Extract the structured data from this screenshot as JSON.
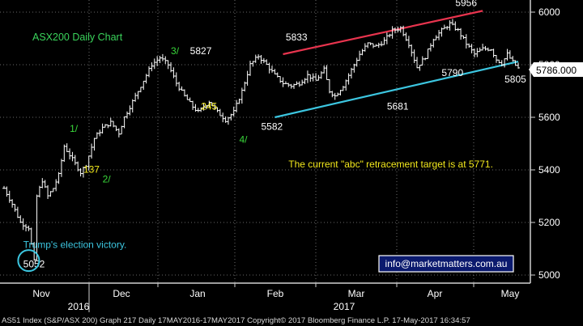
{
  "chart_data": {
    "type": "line",
    "title": "ASX200 Daily Chart",
    "ylim": [
      4980,
      6080
    ],
    "yticks": [
      5000,
      5200,
      5400,
      5600,
      5800,
      6000
    ],
    "last_price": "5786.000",
    "month_labels": [
      "Nov",
      "Dec",
      "Jan",
      "Feb",
      "Mar",
      "Apr",
      "May"
    ],
    "year_labels": [
      "2016",
      "2017"
    ],
    "x": [
      0,
      3,
      6,
      9,
      11,
      12,
      14,
      16,
      18,
      20,
      22,
      25,
      28,
      30,
      33,
      36,
      39,
      42,
      44,
      46,
      48,
      51,
      54,
      57,
      60,
      63,
      66,
      69,
      71,
      73,
      75,
      78,
      81,
      84,
      87,
      90,
      93,
      96,
      99,
      102,
      105,
      108,
      111,
      114,
      117,
      119,
      121,
      124,
      127,
      130,
      133,
      136,
      139,
      142,
      145,
      148,
      151,
      154,
      157,
      160,
      163,
      166,
      169,
      172,
      175,
      178,
      180,
      182,
      184,
      186,
      188
    ],
    "values": [
      5330,
      5270,
      5200,
      5180,
      5052,
      5300,
      5360,
      5300,
      5330,
      5380,
      5490,
      5440,
      5390,
      5420,
      5520,
      5560,
      5580,
      5540,
      5600,
      5640,
      5680,
      5740,
      5800,
      5827,
      5800,
      5730,
      5680,
      5640,
      5620,
      5640,
      5660,
      5620,
      5590,
      5620,
      5700,
      5800,
      5833,
      5800,
      5760,
      5730,
      5720,
      5730,
      5760,
      5740,
      5781,
      5700,
      5681,
      5720,
      5780,
      5840,
      5880,
      5870,
      5890,
      5930,
      5940,
      5880,
      5790,
      5830,
      5900,
      5930,
      5956,
      5930,
      5880,
      5840,
      5860,
      5860,
      5820,
      5805,
      5840,
      5810,
      5786
    ],
    "trendlines": [
      {
        "color": "#e8344e",
        "x1": 102,
        "y1": 5840,
        "x2": 175,
        "y2": 6005
      },
      {
        "color": "#3cc6e0",
        "x1": 99,
        "y1": 5600,
        "x2": 188,
        "y2": 5812
      }
    ],
    "annotations": [
      {
        "text": "1/",
        "x": 24,
        "y": 5545,
        "color": "#39d83a"
      },
      {
        "text": "137",
        "x": 29,
        "y": 5390,
        "color": "#f2e81c"
      },
      {
        "text": "2/",
        "x": 36,
        "y": 5353,
        "color": "#39d83a"
      },
      {
        "text": "3/",
        "x": 61,
        "y": 5840,
        "color": "#39d83a"
      },
      {
        "text": "5827",
        "x": 68,
        "y": 5840,
        "color": "#ffffff"
      },
      {
        "text": "245",
        "x": 72,
        "y": 5630,
        "color": "#f2e81c"
      },
      {
        "text": "4/",
        "x": 86,
        "y": 5503,
        "color": "#39d83a"
      },
      {
        "text": "5582",
        "x": 94,
        "y": 5553,
        "color": "#ffffff"
      },
      {
        "text": "5833",
        "x": 103,
        "y": 5893,
        "color": "#ffffff"
      },
      {
        "text": "5681",
        "x": 140,
        "y": 5630,
        "color": "#ffffff"
      },
      {
        "text": "5790",
        "x": 160,
        "y": 5757,
        "color": "#ffffff"
      },
      {
        "text": "5956",
        "x": 165,
        "y": 6023,
        "color": "#ffffff"
      },
      {
        "text": "5805",
        "x": 183,
        "y": 5732,
        "color": "#ffffff"
      },
      {
        "text": "The current \"abc\" retracement target is at 5771.",
        "x": 104,
        "y": 5410,
        "color": "#f2e81c"
      },
      {
        "text": "Trump's election victory.",
        "x": 7,
        "y": 5103,
        "color": "#3cc6e0"
      },
      {
        "text": "5052",
        "x": 7,
        "y": 5030,
        "color": "#ffffff"
      }
    ],
    "marker": {
      "x": 9,
      "y": 5055,
      "color": "#3cc6e0"
    },
    "link": "info@marketmatters.com.au"
  },
  "footer": {
    "text": "AS51 Index (S&P/ASX 200) Graph 217  Daily 17MAY2016-17MAY2017    Copyright© 2017 Bloomberg Finance L.P.     17-May-2017 16:34:57"
  }
}
